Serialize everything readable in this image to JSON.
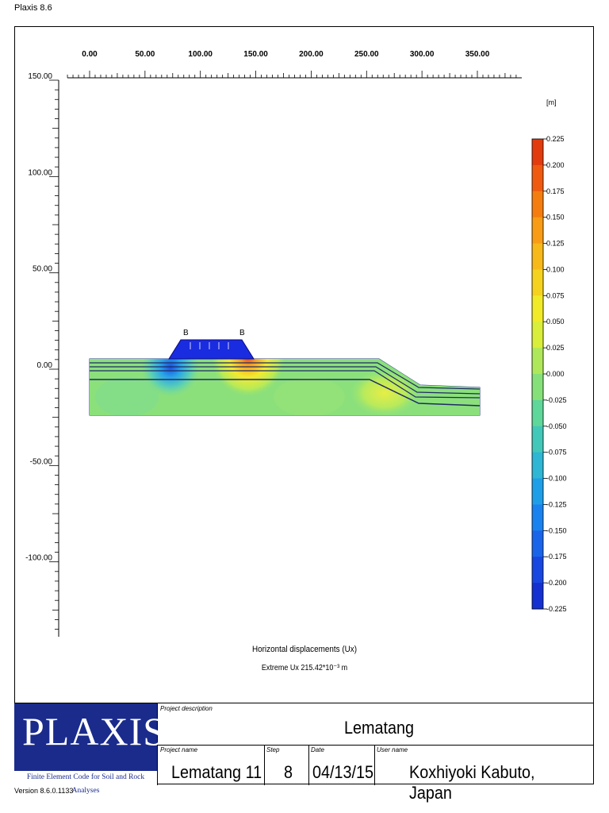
{
  "app": {
    "title": "Plaxis 8.6",
    "version": "Version 8.6.0.1133"
  },
  "chart_data": {
    "type": "heatmap",
    "title": "Horizontal displacements (Ux)",
    "subtitle": "Extreme Ux 215.42*10⁻³ m",
    "x_axis": {
      "ticks": [
        "0.00",
        "50.00",
        "100.00",
        "150.00",
        "200.00",
        "250.00",
        "300.00",
        "350.00"
      ],
      "values": [
        0,
        50,
        100,
        150,
        200,
        250,
        300,
        350
      ]
    },
    "y_axis": {
      "ticks": [
        "150.00",
        "100.00",
        "50.00",
        "0.00",
        "-50.00",
        "-100.00"
      ],
      "values": [
        150,
        100,
        50,
        0,
        -50,
        -100
      ]
    },
    "colorbar": {
      "unit": "[m]",
      "labels": [
        "0.225",
        "0.200",
        "0.175",
        "0.150",
        "0.125",
        "0.100",
        "0.075",
        "0.050",
        "0.025",
        "0.000",
        "-0.025",
        "-0.050",
        "-0.075",
        "-0.100",
        "-0.125",
        "-0.150",
        "-0.175",
        "-0.200",
        "-0.225"
      ],
      "colors": [
        "#e23b0e",
        "#ef5a10",
        "#f57d10",
        "#f79c14",
        "#f7b81a",
        "#f5d21e",
        "#f0ea28",
        "#d8ee3a",
        "#aee85a",
        "#86e07a",
        "#5fd69a",
        "#42c8b8",
        "#2eb6d4",
        "#1f9ee8",
        "#1a82ee",
        "#1a64ea",
        "#1846e0",
        "#1530d0",
        "#1018c4"
      ]
    },
    "embankment_labels": [
      "B",
      "B"
    ]
  },
  "project": {
    "description_label": "Project description",
    "description": "Lematang",
    "name_label": "Project name",
    "name": "Lematang 11",
    "step_label": "Step",
    "step": "8",
    "date_label": "Date",
    "date": "04/13/15",
    "user_label": "User name",
    "user": "Koxhiyoki Kabuto, Japan"
  },
  "logo": {
    "word": "PLAXIS",
    "tagline": "Finite Element Code for Soil and Rock Analyses"
  }
}
